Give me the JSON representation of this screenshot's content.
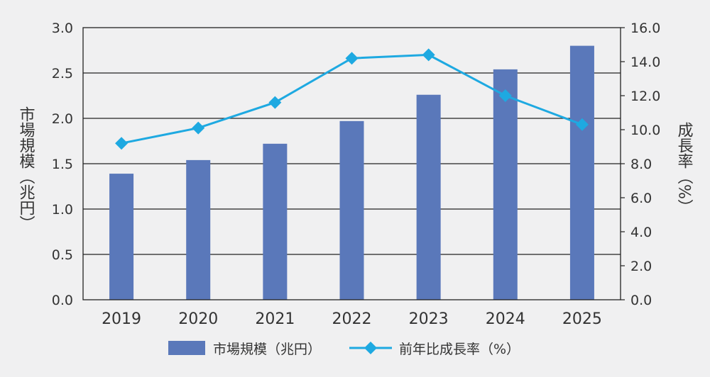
{
  "chart_data": {
    "type": "bar+line",
    "categories": [
      "2019",
      "2020",
      "2021",
      "2022",
      "2023",
      "2024",
      "2025"
    ],
    "series": [
      {
        "name": "市場規模（兆円）",
        "type": "bar",
        "axis": "left",
        "color": "#5a78ba",
        "values": [
          1.39,
          1.54,
          1.72,
          1.97,
          2.26,
          2.54,
          2.8
        ]
      },
      {
        "name": "前年比成長率（%）",
        "type": "line",
        "axis": "right",
        "color": "#1ea9e1",
        "marker": "diamond",
        "values": [
          9.2,
          10.1,
          11.6,
          14.2,
          14.4,
          12.0,
          10.3
        ]
      }
    ],
    "y_left": {
      "label": "市場規模（兆円）",
      "range": [
        0,
        3.0
      ],
      "ticks": [
        "0.0",
        "0.5",
        "1.0",
        "1.5",
        "2.0",
        "2.5",
        "3.0"
      ]
    },
    "y_right": {
      "label": "成長率（%）",
      "range": [
        0,
        16.0
      ],
      "ticks": [
        "0.0",
        "2.0",
        "4.0",
        "6.0",
        "8.0",
        "10.0",
        "12.0",
        "14.0",
        "16.0"
      ]
    },
    "grid": true,
    "legend_position": "bottom-center"
  },
  "legend": {
    "bar_label": "市場規模（兆円）",
    "line_label": "前年比成長率（%）"
  }
}
